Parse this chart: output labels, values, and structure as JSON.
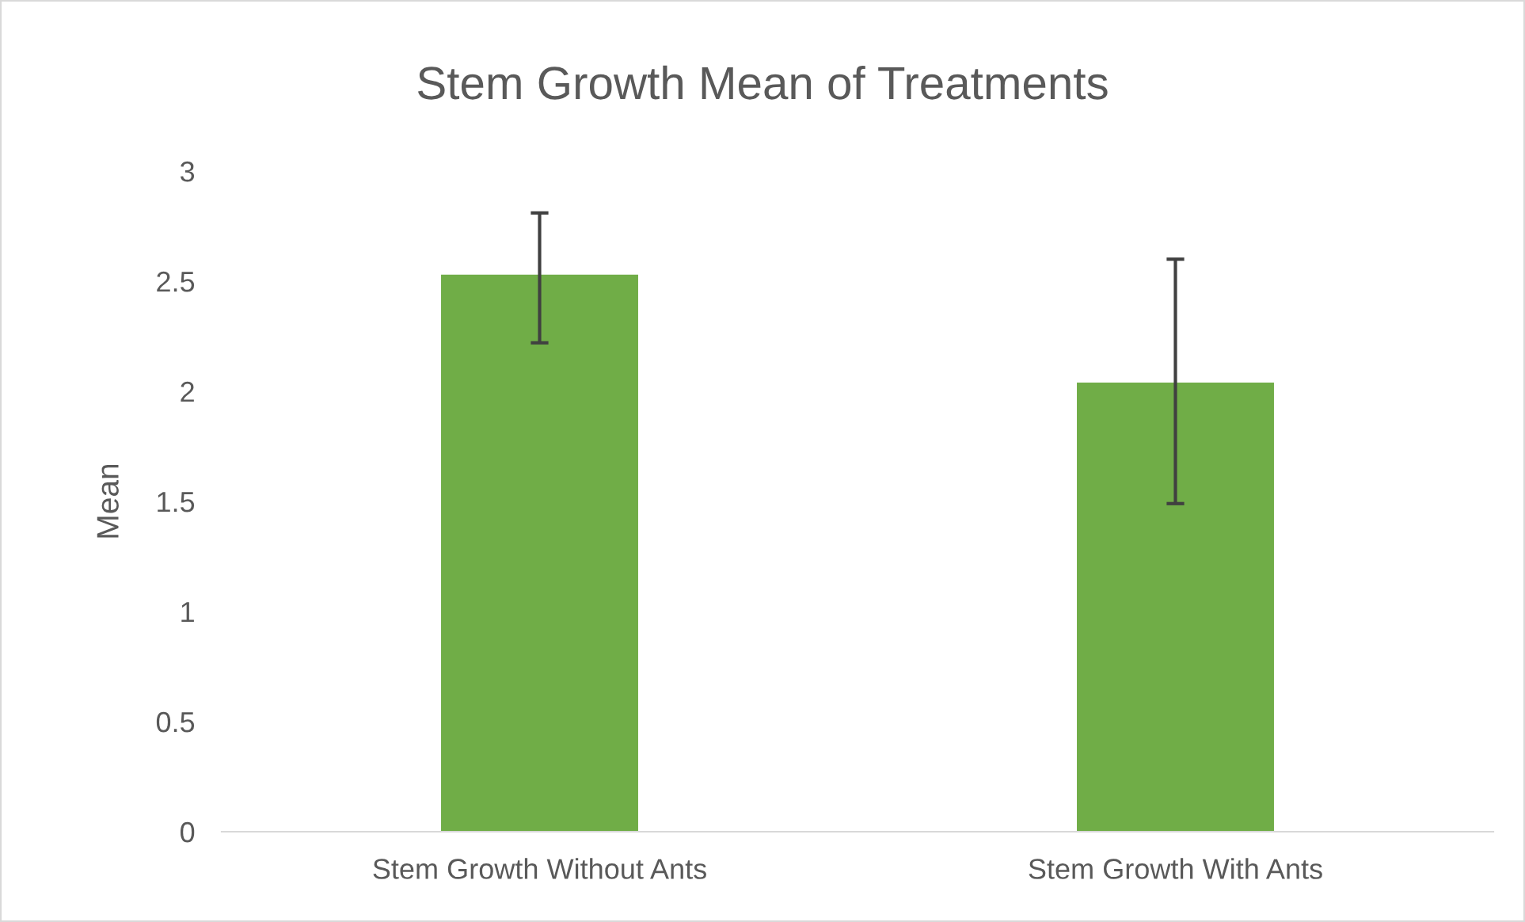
{
  "chart_data": {
    "type": "bar",
    "title": "Stem Growth Mean of Treatments",
    "ylabel": "Mean",
    "categories": [
      "Stem Growth Without Ants",
      "Stem Growth With Ants"
    ],
    "values": [
      2.53,
      2.04
    ],
    "errors": [
      [
        2.22,
        2.81
      ],
      [
        1.49,
        2.6
      ]
    ],
    "color": "#70ad47",
    "ylim": [
      0,
      3
    ],
    "yticks": [
      0,
      0.5,
      1,
      1.5,
      2,
      2.5,
      3
    ],
    "grid": false,
    "legend": false
  }
}
